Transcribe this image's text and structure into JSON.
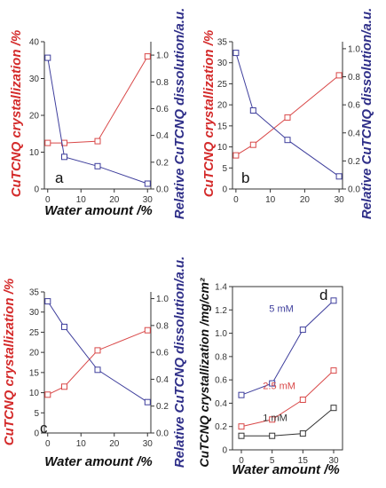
{
  "chart_data": [
    {
      "panel": "a",
      "type": "line",
      "x": [
        0,
        5,
        15,
        30
      ],
      "xticks": [
        "0",
        "10",
        "20",
        "30"
      ],
      "xlabel": "Water amount /%",
      "ylabel_left": "CuTCNQ crystallization /%",
      "ylabel_right": "Relative CuTCNQ dissolution/a.u.",
      "ylim_left": [
        0,
        40
      ],
      "yticks_left": [
        "0",
        "10",
        "20",
        "30",
        "40"
      ],
      "ylim_right": [
        0,
        1.1
      ],
      "yticks_right": [
        "0.0",
        "0.2",
        "0.4",
        "0.6",
        "0.8",
        "1.0"
      ],
      "series": [
        {
          "axis": "left",
          "color": "#d94848",
          "values": [
            12.5,
            12.5,
            13,
            36
          ]
        },
        {
          "axis": "right",
          "color": "#3e3e9c",
          "values": [
            0.98,
            0.24,
            0.17,
            0.04
          ]
        }
      ]
    },
    {
      "panel": "b",
      "type": "line",
      "x": [
        0,
        5,
        15,
        30
      ],
      "xticks": [
        "0",
        "10",
        "20",
        "30"
      ],
      "xlabel": "",
      "ylabel_left": "CuTCNQ crystallization /%",
      "ylabel_right": "Relative CuTCNQ dissolution/a.u.",
      "ylim_left": [
        0,
        35
      ],
      "yticks_left": [
        "0",
        "5",
        "10",
        "15",
        "20",
        "25",
        "30",
        "35"
      ],
      "ylim_right": [
        0,
        1.05
      ],
      "yticks_right": [
        "0.0",
        "0.2",
        "0.4",
        "0.6",
        "0.8",
        "1.0"
      ],
      "series": [
        {
          "axis": "left",
          "color": "#d94848",
          "values": [
            8,
            10.5,
            17,
            27
          ]
        },
        {
          "axis": "right",
          "color": "#3e3e9c",
          "values": [
            0.97,
            0.56,
            0.35,
            0.09
          ]
        }
      ]
    },
    {
      "panel": "c",
      "type": "line",
      "x": [
        0,
        5,
        15,
        30
      ],
      "xticks": [
        "0",
        "10",
        "20",
        "30"
      ],
      "xlabel": "Water amount /%",
      "ylabel_left": "CuTCNQ crystallization /%",
      "ylabel_right": "Relative CuTCNQ dissolution/a.u.",
      "ylim_left": [
        0,
        35
      ],
      "yticks_left": [
        "0",
        "5",
        "10",
        "15",
        "20",
        "25",
        "30",
        "35"
      ],
      "ylim_right": [
        0,
        1.05
      ],
      "yticks_right": [
        "0.0",
        "0.2",
        "0.4",
        "0.6",
        "0.8",
        "1.0"
      ],
      "series": [
        {
          "axis": "left",
          "color": "#d94848",
          "values": [
            9.5,
            11.5,
            20.5,
            25.5
          ]
        },
        {
          "axis": "right",
          "color": "#3e3e9c",
          "values": [
            0.98,
            0.79,
            0.47,
            0.23
          ]
        }
      ]
    },
    {
      "panel": "d",
      "type": "line",
      "x": [
        0,
        5,
        15,
        30
      ],
      "xticks": [
        "0",
        "5",
        "15",
        "30"
      ],
      "xlabel": "Water amount /%",
      "ylabel": "CuTCNQ crystallization /mg/cm²",
      "ylim": [
        0,
        1.4
      ],
      "yticks": [
        "0",
        "0.2",
        "0.4",
        "0.6",
        "0.8",
        "1.0",
        "1.2",
        "1.4"
      ],
      "series": [
        {
          "name": "5 mM",
          "color": "#3e3e9c",
          "values": [
            0.47,
            0.57,
            1.03,
            1.28
          ]
        },
        {
          "name": "2.5 mM",
          "color": "#d94848",
          "values": [
            0.2,
            0.26,
            0.43,
            0.68
          ]
        },
        {
          "name": "1 mM",
          "color": "#333333",
          "values": [
            0.12,
            0.12,
            0.14,
            0.36
          ]
        }
      ]
    }
  ]
}
